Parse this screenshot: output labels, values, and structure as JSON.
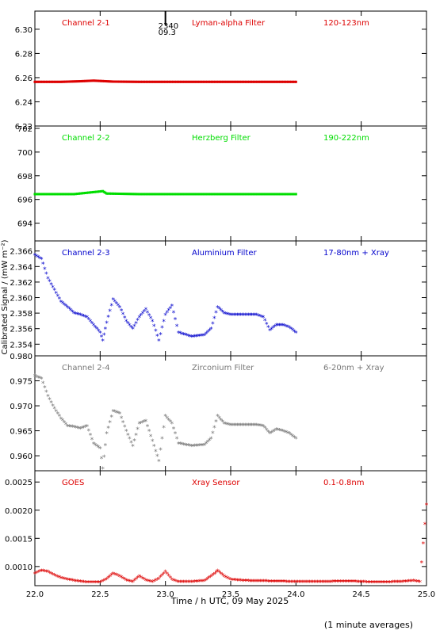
{
  "chart_data": [
    {
      "type": "scatter",
      "panel_labels": [
        "Channel 2-1",
        "Lyman-alpha Filter",
        "120-123nm"
      ],
      "color": "#dd0000",
      "ylim": [
        6.22,
        6.315
      ],
      "yticks": [
        6.22,
        6.24,
        6.26,
        6.28,
        6.3
      ],
      "ytick_labels": [
        "6.22",
        "6.24",
        "6.26",
        "6.28",
        "6.30"
      ],
      "x": [
        22.0,
        22.2,
        22.35,
        22.45,
        22.6,
        22.8,
        23.0,
        23.5,
        24.0
      ],
      "y": [
        6.2565,
        6.2565,
        6.257,
        6.2575,
        6.2567,
        6.2565,
        6.2565,
        6.2565,
        6.2565
      ],
      "annotation": {
        "x": 23.0,
        "lines": [
          "2340",
          "09.3"
        ]
      }
    },
    {
      "type": "scatter",
      "panel_labels": [
        "Channel 2-2",
        "Herzberg Filter",
        "190-222nm"
      ],
      "color": "#00dd00",
      "ylim": [
        692.5,
        702.2
      ],
      "yticks": [
        694,
        696,
        698,
        700,
        702
      ],
      "ytick_labels": [
        "694",
        "696",
        "698",
        "700",
        "702"
      ],
      "x": [
        22.0,
        22.3,
        22.52,
        22.55,
        22.8,
        23.0,
        23.5,
        24.0
      ],
      "y": [
        696.45,
        696.45,
        696.7,
        696.5,
        696.45,
        696.45,
        696.45,
        696.45
      ]
    },
    {
      "type": "scatter",
      "panel_labels": [
        "Channel 2-3",
        "Aluminium Filter",
        "17-80nm + Xray"
      ],
      "color": "#0000cc",
      "ylim": [
        2.3525,
        2.3673
      ],
      "yticks": [
        2.354,
        2.356,
        2.358,
        2.36,
        2.362,
        2.364,
        2.366
      ],
      "ytick_labels": [
        "2.354",
        "2.356",
        "2.358",
        "2.360",
        "2.362",
        "2.364",
        "2.366"
      ],
      "x": [
        22.0,
        22.05,
        22.1,
        22.15,
        22.2,
        22.25,
        22.3,
        22.35,
        22.4,
        22.45,
        22.5,
        22.52,
        22.55,
        22.6,
        22.65,
        22.7,
        22.75,
        22.8,
        22.85,
        22.9,
        22.95,
        23.0,
        23.05,
        23.1,
        23.2,
        23.3,
        23.35,
        23.4,
        23.45,
        23.5,
        23.6,
        23.7,
        23.75,
        23.8,
        23.85,
        23.9,
        23.95,
        24.0
      ],
      "y": [
        2.3655,
        2.365,
        2.3625,
        2.361,
        2.3595,
        2.3588,
        2.358,
        2.3578,
        2.3575,
        2.3565,
        2.3555,
        2.3545,
        2.3568,
        2.3598,
        2.3588,
        2.357,
        2.356,
        2.3575,
        2.3585,
        2.357,
        2.3545,
        2.3578,
        2.359,
        2.3555,
        2.355,
        2.3552,
        2.356,
        2.3588,
        2.358,
        2.3578,
        2.3578,
        2.3578,
        2.3575,
        2.3558,
        2.3565,
        2.3565,
        2.3562,
        2.3555
      ]
    },
    {
      "type": "scatter",
      "panel_labels": [
        "Channel 2-4",
        "Zirconium Filter",
        "6-20nm + Xray"
      ],
      "color": "#777777",
      "ylim": [
        0.957,
        0.98
      ],
      "yticks": [
        0.96,
        0.965,
        0.97,
        0.975,
        0.98
      ],
      "ytick_labels": [
        "0.960",
        "0.965",
        "0.970",
        "0.975",
        "0.980"
      ],
      "x": [
        22.0,
        22.05,
        22.1,
        22.15,
        22.2,
        22.25,
        22.3,
        22.35,
        22.4,
        22.45,
        22.5,
        22.52,
        22.55,
        22.6,
        22.65,
        22.7,
        22.75,
        22.8,
        22.85,
        22.9,
        22.95,
        23.0,
        23.05,
        23.1,
        23.2,
        23.3,
        23.35,
        23.4,
        23.45,
        23.5,
        23.6,
        23.7,
        23.75,
        23.8,
        23.85,
        23.9,
        23.95,
        24.0
      ],
      "y": [
        0.976,
        0.9755,
        0.972,
        0.9695,
        0.9675,
        0.966,
        0.9658,
        0.9655,
        0.966,
        0.9625,
        0.9615,
        0.9575,
        0.9645,
        0.969,
        0.9685,
        0.965,
        0.962,
        0.9665,
        0.967,
        0.963,
        0.959,
        0.968,
        0.9665,
        0.9625,
        0.962,
        0.9622,
        0.9635,
        0.968,
        0.9665,
        0.9662,
        0.9662,
        0.9662,
        0.966,
        0.9645,
        0.9653,
        0.965,
        0.9645,
        0.9635
      ]
    },
    {
      "type": "scatter",
      "panel_labels": [
        "GOES",
        "Xray Sensor",
        "0.1-0.8nm"
      ],
      "color": "#dd0000",
      "ylim": [
        0.00066,
        0.0027
      ],
      "yticks": [
        0.001,
        0.0015,
        0.002,
        0.0025
      ],
      "ytick_labels": [
        "0.0010",
        "0.0015",
        "0.0020",
        "0.0025"
      ],
      "x": [
        22.0,
        22.05,
        22.1,
        22.15,
        22.2,
        22.3,
        22.4,
        22.5,
        22.55,
        22.6,
        22.65,
        22.7,
        22.75,
        22.8,
        22.85,
        22.9,
        22.95,
        23.0,
        23.05,
        23.1,
        23.2,
        23.3,
        23.38,
        23.4,
        23.45,
        23.5,
        23.6,
        23.8,
        24.0,
        24.2,
        24.4,
        24.6,
        24.8,
        24.9,
        24.95,
        25.0
      ],
      "y": [
        0.00088,
        0.00093,
        0.00091,
        0.00085,
        0.0008,
        0.00075,
        0.00072,
        0.00072,
        0.00078,
        0.00088,
        0.00083,
        0.00076,
        0.00073,
        0.00083,
        0.00076,
        0.00073,
        0.00079,
        0.00091,
        0.00077,
        0.00073,
        0.00073,
        0.00075,
        0.00088,
        0.00093,
        0.00083,
        0.00077,
        0.00075,
        0.00074,
        0.00073,
        0.00073,
        0.00074,
        0.00072,
        0.00073,
        0.00075,
        0.00073,
        0.0021
      ]
    }
  ],
  "xaxis": {
    "xlim": [
      22.0,
      25.0
    ],
    "ticks": [
      22.0,
      22.5,
      23.0,
      23.5,
      24.0,
      24.5,
      25.0
    ],
    "tick_labels": [
      "22.0",
      "22.5",
      "23.0",
      "23.5",
      "24.0",
      "24.5",
      "25.0"
    ],
    "label": "Time / h UTC, 09 May 2025"
  },
  "ylabel": "Calibrated Signal / (mW m⁻²)",
  "footer": "(1 minute averages)"
}
